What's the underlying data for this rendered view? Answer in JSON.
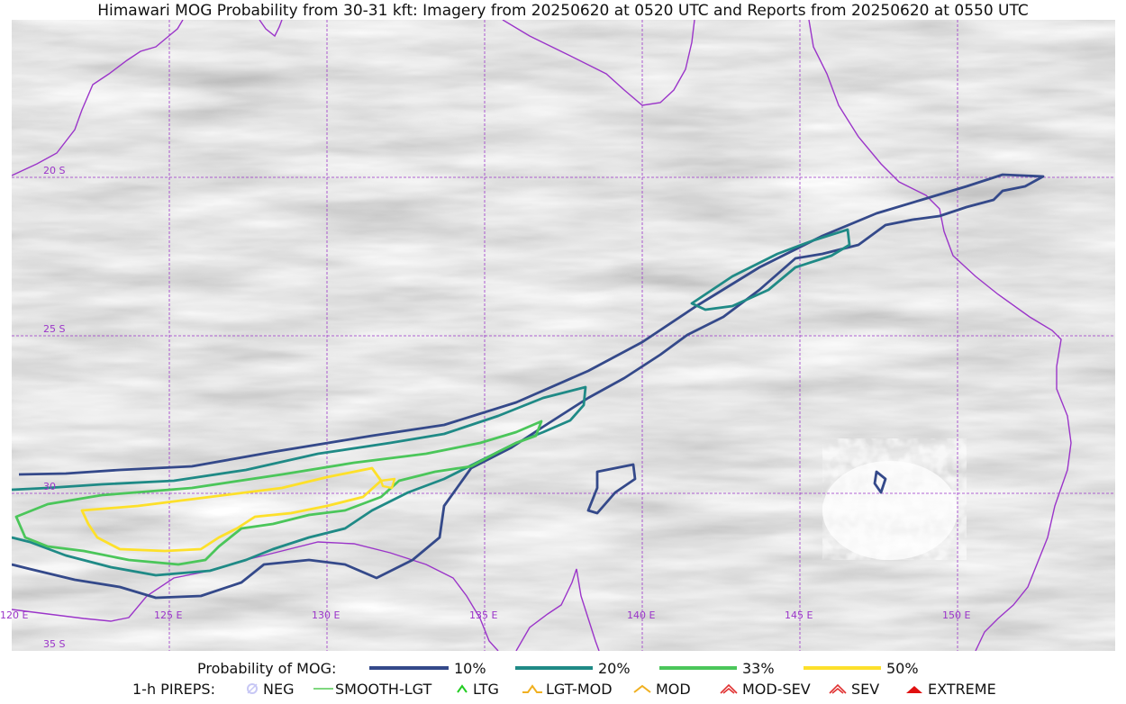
{
  "title": "Himawari MOG Probability from 30-31 kft: Imagery from 20250620 at 0520 UTC and Reports from 20250620 at 0550 UTC",
  "map": {
    "lat_labels": [
      "20 S",
      "25 S",
      "30",
      "35 S"
    ],
    "lon_labels": [
      "120 E",
      "125 E",
      "130 E",
      "135 E",
      "140 E",
      "145 E",
      "150 E"
    ],
    "grid_color": "#9b35c9",
    "coast_color": "#9b35c9",
    "contour_colors": {
      "p10": "#34498a",
      "p20": "#1f8a86",
      "p33": "#4bc65a",
      "p50": "#fde02a"
    }
  },
  "legend": {
    "prob_label": "Probability of MOG:",
    "prob_items": [
      {
        "label": "10%",
        "color": "#34498a"
      },
      {
        "label": "20%",
        "color": "#1f8a86"
      },
      {
        "label": "33%",
        "color": "#4bc65a"
      },
      {
        "label": "50%",
        "color": "#fde02a"
      }
    ],
    "pirep_label": "1-h PIREPS:",
    "pirep_items": [
      {
        "label": "NEG",
        "color": "#c7c7f5",
        "icon": "neg-circle-icon"
      },
      {
        "label": "SMOOTH-LGT",
        "color": "#55cc55",
        "icon": "line-icon"
      },
      {
        "label": "LTG",
        "color": "#22cc22",
        "icon": "caret-icon"
      },
      {
        "label": "LGT-MOD",
        "color": "#f0b020",
        "icon": "hat-icon"
      },
      {
        "label": "MOD",
        "color": "#f0b020",
        "icon": "caret-icon"
      },
      {
        "label": "MOD-SEV",
        "color": "#e03030",
        "icon": "double-caret-icon"
      },
      {
        "label": "SEV",
        "color": "#e03030",
        "icon": "double-caret-icon"
      },
      {
        "label": "EXTREME",
        "color": "#e01010",
        "icon": "filled-caret-icon"
      }
    ]
  }
}
